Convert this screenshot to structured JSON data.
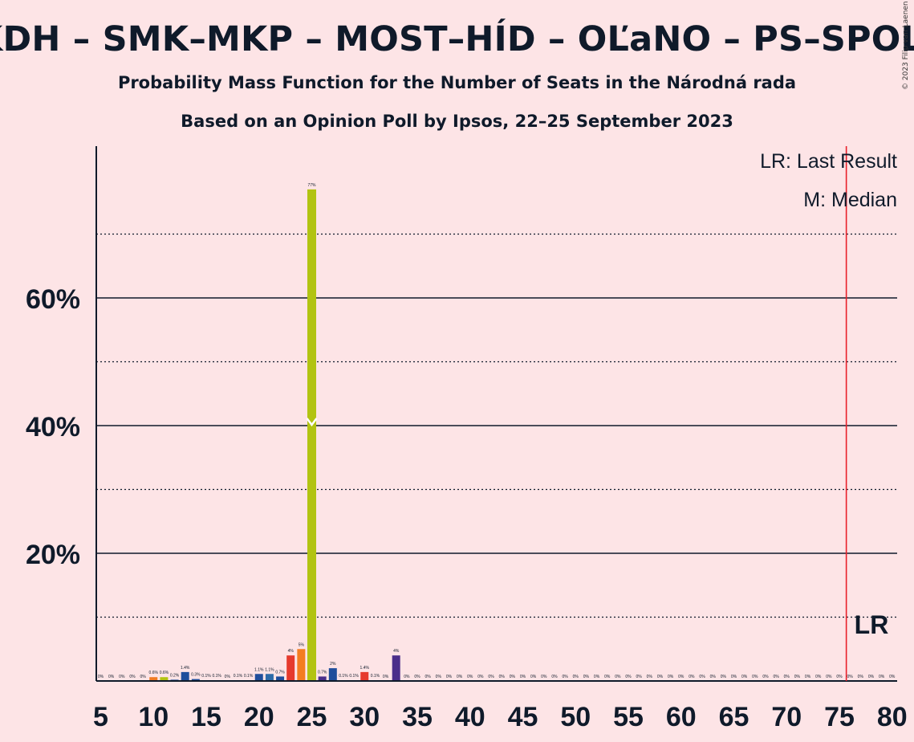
{
  "title": "KDH – SMK–MKP – MOST–HÍD – OĽaNO – PS–SPOLU",
  "subtitle": "Probability Mass Function for the Number of Seats in the Národná rada",
  "subtitle2": "Based on an Opinion Poll by Ipsos, 22–25 September 2023",
  "copyright": "© 2023 Filip van Laenen",
  "legend": {
    "last_result": "LR: Last Result",
    "median": "M: Median"
  },
  "colors": {
    "background": "#fde4e6",
    "lr_line": "#e8202a",
    "median_bar": "#b2c312",
    "kdh": "#1f4e9c",
    "smk": "#f07b24",
    "most": "#f47d20",
    "olano": "#b2c312",
    "ps": "#e63a2d",
    "spolu": "#4a2e8a"
  },
  "chart_data": {
    "type": "bar",
    "xlim": [
      5,
      80
    ],
    "ylim": [
      0,
      80
    ],
    "y_ticks": [
      20,
      40,
      60
    ],
    "y_tick_labels": [
      "20%",
      "40%",
      "60%"
    ],
    "y_minor_gridlines": [
      10,
      30,
      50,
      70
    ],
    "x_ticks": [
      5,
      10,
      15,
      20,
      25,
      30,
      35,
      40,
      45,
      50,
      55,
      60,
      65,
      70,
      75,
      80
    ],
    "last_result": 76,
    "last_result_label": "LR",
    "median": 25,
    "median_marker": "M",
    "bars": [
      {
        "x": 5,
        "value": 0,
        "label": "0%",
        "color": "#1f4e9c"
      },
      {
        "x": 6,
        "value": 0,
        "label": "0%",
        "color": "#1f4e9c"
      },
      {
        "x": 7,
        "value": 0,
        "label": "0%",
        "color": "#1f4e9c"
      },
      {
        "x": 8,
        "value": 0,
        "label": "0%",
        "color": "#1f4e9c"
      },
      {
        "x": 9,
        "value": 0,
        "label": "0%",
        "color": "#1f4e9c"
      },
      {
        "x": 10,
        "value": 0.6,
        "label": "0.6%",
        "color": "#f07b24"
      },
      {
        "x": 11,
        "value": 0.6,
        "label": "0.6%",
        "color": "#b2c312"
      },
      {
        "x": 12,
        "value": 0.2,
        "label": "0.2%",
        "color": "#1f4e9c"
      },
      {
        "x": 13,
        "value": 1.4,
        "label": "1.4%",
        "color": "#1f4e9c"
      },
      {
        "x": 14,
        "value": 0.3,
        "label": "0.3%",
        "color": "#1f4e9c"
      },
      {
        "x": 15,
        "value": 0.1,
        "label": "0.1%",
        "color": "#1f4e9c"
      },
      {
        "x": 16,
        "value": 0.1,
        "label": "0.1%",
        "color": "#1f4e9c"
      },
      {
        "x": 17,
        "value": 0,
        "label": "0%",
        "color": "#1f4e9c"
      },
      {
        "x": 18,
        "value": 0.1,
        "label": "0.1%",
        "color": "#1f4e9c"
      },
      {
        "x": 19,
        "value": 0.1,
        "label": "0.1%",
        "color": "#1f4e9c"
      },
      {
        "x": 20,
        "value": 1.1,
        "label": "1.1%",
        "color": "#1f4e9c"
      },
      {
        "x": 21,
        "value": 1.1,
        "label": "1.1%",
        "color": "#2c6aa8"
      },
      {
        "x": 22,
        "value": 0.7,
        "label": "0.7%",
        "color": "#1f4e9c"
      },
      {
        "x": 23,
        "value": 4,
        "label": "4%",
        "color": "#e63a2d"
      },
      {
        "x": 24,
        "value": 5,
        "label": "5%",
        "color": "#f47d20"
      },
      {
        "x": 25,
        "value": 77,
        "label": "77%",
        "color": "#b2c312"
      },
      {
        "x": 26,
        "value": 0.7,
        "label": "0.7%",
        "color": "#4a2e8a"
      },
      {
        "x": 27,
        "value": 2,
        "label": "2%",
        "color": "#1f4e9c"
      },
      {
        "x": 28,
        "value": 0.1,
        "label": "0.1%",
        "color": "#1f4e9c"
      },
      {
        "x": 29,
        "value": 0.1,
        "label": "0.1%",
        "color": "#1f4e9c"
      },
      {
        "x": 30,
        "value": 1.4,
        "label": "1.4%",
        "color": "#e63a2d"
      },
      {
        "x": 31,
        "value": 0.1,
        "label": "0.1%",
        "color": "#1f4e9c"
      },
      {
        "x": 32,
        "value": 0,
        "label": "0%",
        "color": "#1f4e9c"
      },
      {
        "x": 33,
        "value": 4,
        "label": "4%",
        "color": "#4a2e8a"
      },
      {
        "x": 34,
        "value": 0,
        "label": "0%",
        "color": "#1f4e9c"
      },
      {
        "x": 35,
        "value": 0,
        "label": "0%",
        "color": "#1f4e9c"
      },
      {
        "x": 36,
        "value": 0,
        "label": "0%",
        "color": "#1f4e9c"
      },
      {
        "x": 37,
        "value": 0,
        "label": "0%",
        "color": "#1f4e9c"
      },
      {
        "x": 38,
        "value": 0,
        "label": "0%",
        "color": "#1f4e9c"
      },
      {
        "x": 39,
        "value": 0,
        "label": "0%",
        "color": "#1f4e9c"
      },
      {
        "x": 40,
        "value": 0,
        "label": "0%",
        "color": "#1f4e9c"
      },
      {
        "x": 41,
        "value": 0,
        "label": "0%",
        "color": "#1f4e9c"
      },
      {
        "x": 42,
        "value": 0,
        "label": "0%",
        "color": "#1f4e9c"
      },
      {
        "x": 43,
        "value": 0,
        "label": "0%",
        "color": "#1f4e9c"
      },
      {
        "x": 44,
        "value": 0,
        "label": "0%",
        "color": "#1f4e9c"
      },
      {
        "x": 45,
        "value": 0,
        "label": "0%",
        "color": "#1f4e9c"
      },
      {
        "x": 46,
        "value": 0,
        "label": "0%",
        "color": "#1f4e9c"
      },
      {
        "x": 47,
        "value": 0,
        "label": "0%",
        "color": "#1f4e9c"
      },
      {
        "x": 48,
        "value": 0,
        "label": "0%",
        "color": "#1f4e9c"
      },
      {
        "x": 49,
        "value": 0,
        "label": "0%",
        "color": "#1f4e9c"
      },
      {
        "x": 50,
        "value": 0,
        "label": "0%",
        "color": "#1f4e9c"
      },
      {
        "x": 51,
        "value": 0,
        "label": "0%",
        "color": "#1f4e9c"
      },
      {
        "x": 52,
        "value": 0,
        "label": "0%",
        "color": "#1f4e9c"
      },
      {
        "x": 53,
        "value": 0,
        "label": "0%",
        "color": "#1f4e9c"
      },
      {
        "x": 54,
        "value": 0,
        "label": "0%",
        "color": "#1f4e9c"
      },
      {
        "x": 55,
        "value": 0,
        "label": "0%",
        "color": "#1f4e9c"
      },
      {
        "x": 56,
        "value": 0,
        "label": "0%",
        "color": "#1f4e9c"
      },
      {
        "x": 57,
        "value": 0,
        "label": "0%",
        "color": "#1f4e9c"
      },
      {
        "x": 58,
        "value": 0,
        "label": "0%",
        "color": "#1f4e9c"
      },
      {
        "x": 59,
        "value": 0,
        "label": "0%",
        "color": "#1f4e9c"
      },
      {
        "x": 60,
        "value": 0,
        "label": "0%",
        "color": "#1f4e9c"
      },
      {
        "x": 61,
        "value": 0,
        "label": "0%",
        "color": "#1f4e9c"
      },
      {
        "x": 62,
        "value": 0,
        "label": "0%",
        "color": "#1f4e9c"
      },
      {
        "x": 63,
        "value": 0,
        "label": "0%",
        "color": "#1f4e9c"
      },
      {
        "x": 64,
        "value": 0,
        "label": "0%",
        "color": "#1f4e9c"
      },
      {
        "x": 65,
        "value": 0,
        "label": "0%",
        "color": "#1f4e9c"
      },
      {
        "x": 66,
        "value": 0,
        "label": "0%",
        "color": "#1f4e9c"
      },
      {
        "x": 67,
        "value": 0,
        "label": "0%",
        "color": "#1f4e9c"
      },
      {
        "x": 68,
        "value": 0,
        "label": "0%",
        "color": "#1f4e9c"
      },
      {
        "x": 69,
        "value": 0,
        "label": "0%",
        "color": "#1f4e9c"
      },
      {
        "x": 70,
        "value": 0,
        "label": "0%",
        "color": "#1f4e9c"
      },
      {
        "x": 71,
        "value": 0,
        "label": "0%",
        "color": "#1f4e9c"
      },
      {
        "x": 72,
        "value": 0,
        "label": "0%",
        "color": "#1f4e9c"
      },
      {
        "x": 73,
        "value": 0,
        "label": "0%",
        "color": "#1f4e9c"
      },
      {
        "x": 74,
        "value": 0,
        "label": "0%",
        "color": "#1f4e9c"
      },
      {
        "x": 75,
        "value": 0,
        "label": "0%",
        "color": "#1f4e9c"
      },
      {
        "x": 76,
        "value": 0,
        "label": "0%",
        "color": "#1f4e9c"
      },
      {
        "x": 77,
        "value": 0,
        "label": "0%",
        "color": "#1f4e9c"
      },
      {
        "x": 78,
        "value": 0,
        "label": "0%",
        "color": "#1f4e9c"
      },
      {
        "x": 79,
        "value": 0,
        "label": "0%",
        "color": "#1f4e9c"
      },
      {
        "x": 80,
        "value": 0,
        "label": "0%",
        "color": "#1f4e9c"
      }
    ]
  }
}
